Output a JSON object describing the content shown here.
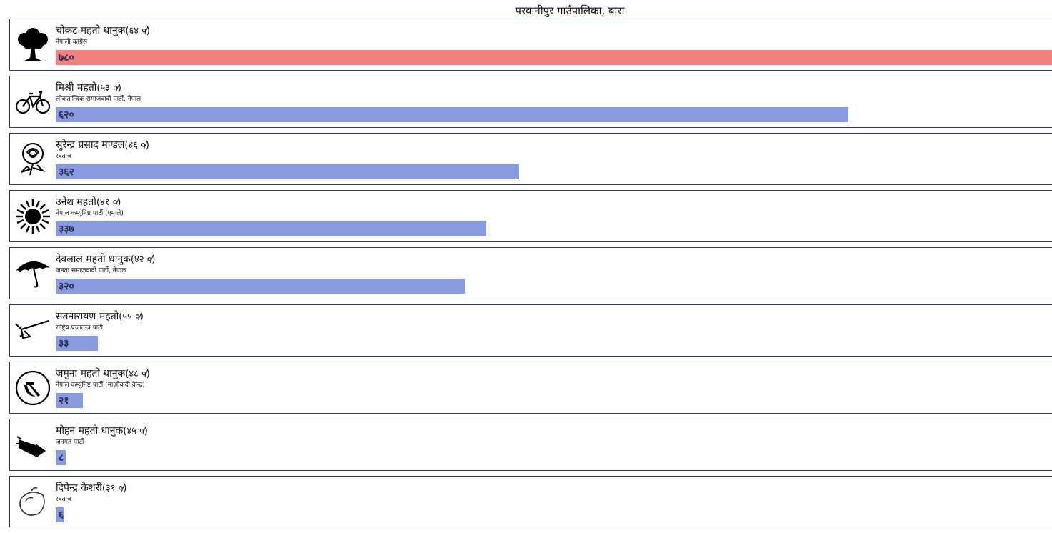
{
  "page": {
    "title": "परवानीपुर गाउँपालिका, बारा"
  },
  "colors": {
    "winner_bar": "#f08080",
    "other_bar": "#8a9ae0",
    "border": "#24365e"
  },
  "candidates": [
    {
      "name": "चोकट महतो धानुक",
      "age": "(६४ ०̸)",
      "party": "नेपाली कांग्रेस",
      "votes": "७८०",
      "votes_value": 780,
      "symbol": "tree-icon"
    },
    {
      "name": "मिश्री महतो",
      "age": "(५३ ०̸)",
      "party": "लोकतान्त्रिक समाजवादी पार्टी, नेपाल",
      "votes": "६२०",
      "votes_value": 620,
      "symbol": "bicycle-icon"
    },
    {
      "name": "सुरेन्द्र प्रसाद मण्डल",
      "age": "(४६ ०̸)",
      "party": "स्वतन्त्र",
      "votes": "३६२",
      "votes_value": 362,
      "symbol": "rose-icon"
    },
    {
      "name": "उनेश महतो",
      "age": "(४१ ०̸)",
      "party": "नेपाल कम्युनिष्ट पार्टी (एमाले)",
      "votes": "३३७",
      "votes_value": 337,
      "symbol": "sun-icon"
    },
    {
      "name": "देवलाल महतो धानुक",
      "age": "(४२ ०̸)",
      "party": "जनता समाजवादी पार्टी, नेपाल",
      "votes": "३२०",
      "votes_value": 320,
      "symbol": "umbrella-icon"
    },
    {
      "name": "सतनारायण महतो",
      "age": "(५५ ०̸)",
      "party": "राष्ट्रिय प्रजातन्त्र पार्टी",
      "votes": "३३",
      "votes_value": 33,
      "symbol": "plough-icon"
    },
    {
      "name": "जमुना महतो धानुक",
      "age": "(४८ ०̸)",
      "party": "नेपाल कम्युनिष्ट पार्टी (माओवादी केन्द्र)",
      "votes": "२१",
      "votes_value": 21,
      "symbol": "hammer-sickle-icon"
    },
    {
      "name": "मोहन महतो धानुक",
      "age": "(४५ ०̸)",
      "party": "जनमत पार्टी",
      "votes": "८",
      "votes_value": 8,
      "symbol": "megaphone-icon"
    },
    {
      "name": "दिपेन्द्र केशरी",
      "age": "(३१ ०̸)",
      "party": "स्वतन्त्र",
      "votes": "६",
      "votes_value": 6,
      "symbol": "mango-icon"
    }
  ]
}
